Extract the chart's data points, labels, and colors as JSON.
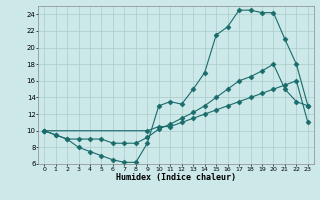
{
  "xlabel": "Humidex (Indice chaleur)",
  "xlim": [
    -0.5,
    23.5
  ],
  "ylim": [
    6,
    25
  ],
  "yticks": [
    6,
    8,
    10,
    12,
    14,
    16,
    18,
    20,
    22,
    24
  ],
  "xticks": [
    0,
    1,
    2,
    3,
    4,
    5,
    6,
    7,
    8,
    9,
    10,
    11,
    12,
    13,
    14,
    15,
    16,
    17,
    18,
    19,
    20,
    21,
    22,
    23
  ],
  "bg_color": "#cce8e8",
  "grid_color": "#aacccc",
  "line_color": "#1a6b6b",
  "line1_x": [
    0,
    1,
    2,
    3,
    4,
    5,
    6,
    7,
    8,
    9,
    10,
    11,
    12,
    13,
    14,
    15,
    16,
    17,
    18,
    19,
    20,
    21,
    22,
    23
  ],
  "line1_y": [
    10,
    9.5,
    9,
    8,
    7.5,
    7,
    6.5,
    6.2,
    6.2,
    8.5,
    13,
    13.5,
    13.2,
    15,
    17,
    21.5,
    22.5,
    24.5,
    24.5,
    24.2,
    24.2,
    21,
    18,
    13
  ],
  "line2_x": [
    0,
    9,
    10,
    11,
    12,
    13,
    14,
    15,
    16,
    17,
    18,
    19,
    20,
    21,
    22,
    23
  ],
  "line2_y": [
    10,
    10,
    10.5,
    10.5,
    11,
    11.5,
    12,
    12.5,
    13,
    13.5,
    14,
    14.5,
    15,
    15.5,
    16,
    11
  ],
  "line3_x": [
    0,
    1,
    2,
    3,
    4,
    5,
    6,
    7,
    8,
    9,
    10,
    11,
    12,
    13,
    14,
    15,
    16,
    17,
    18,
    19,
    20,
    21,
    22,
    23
  ],
  "line3_y": [
    10,
    9.5,
    9,
    9,
    9,
    9,
    8.5,
    8.5,
    8.5,
    9.2,
    10.2,
    10.8,
    11.5,
    12.2,
    13,
    14,
    15,
    16,
    16.5,
    17.2,
    18,
    15,
    13.5,
    13
  ]
}
